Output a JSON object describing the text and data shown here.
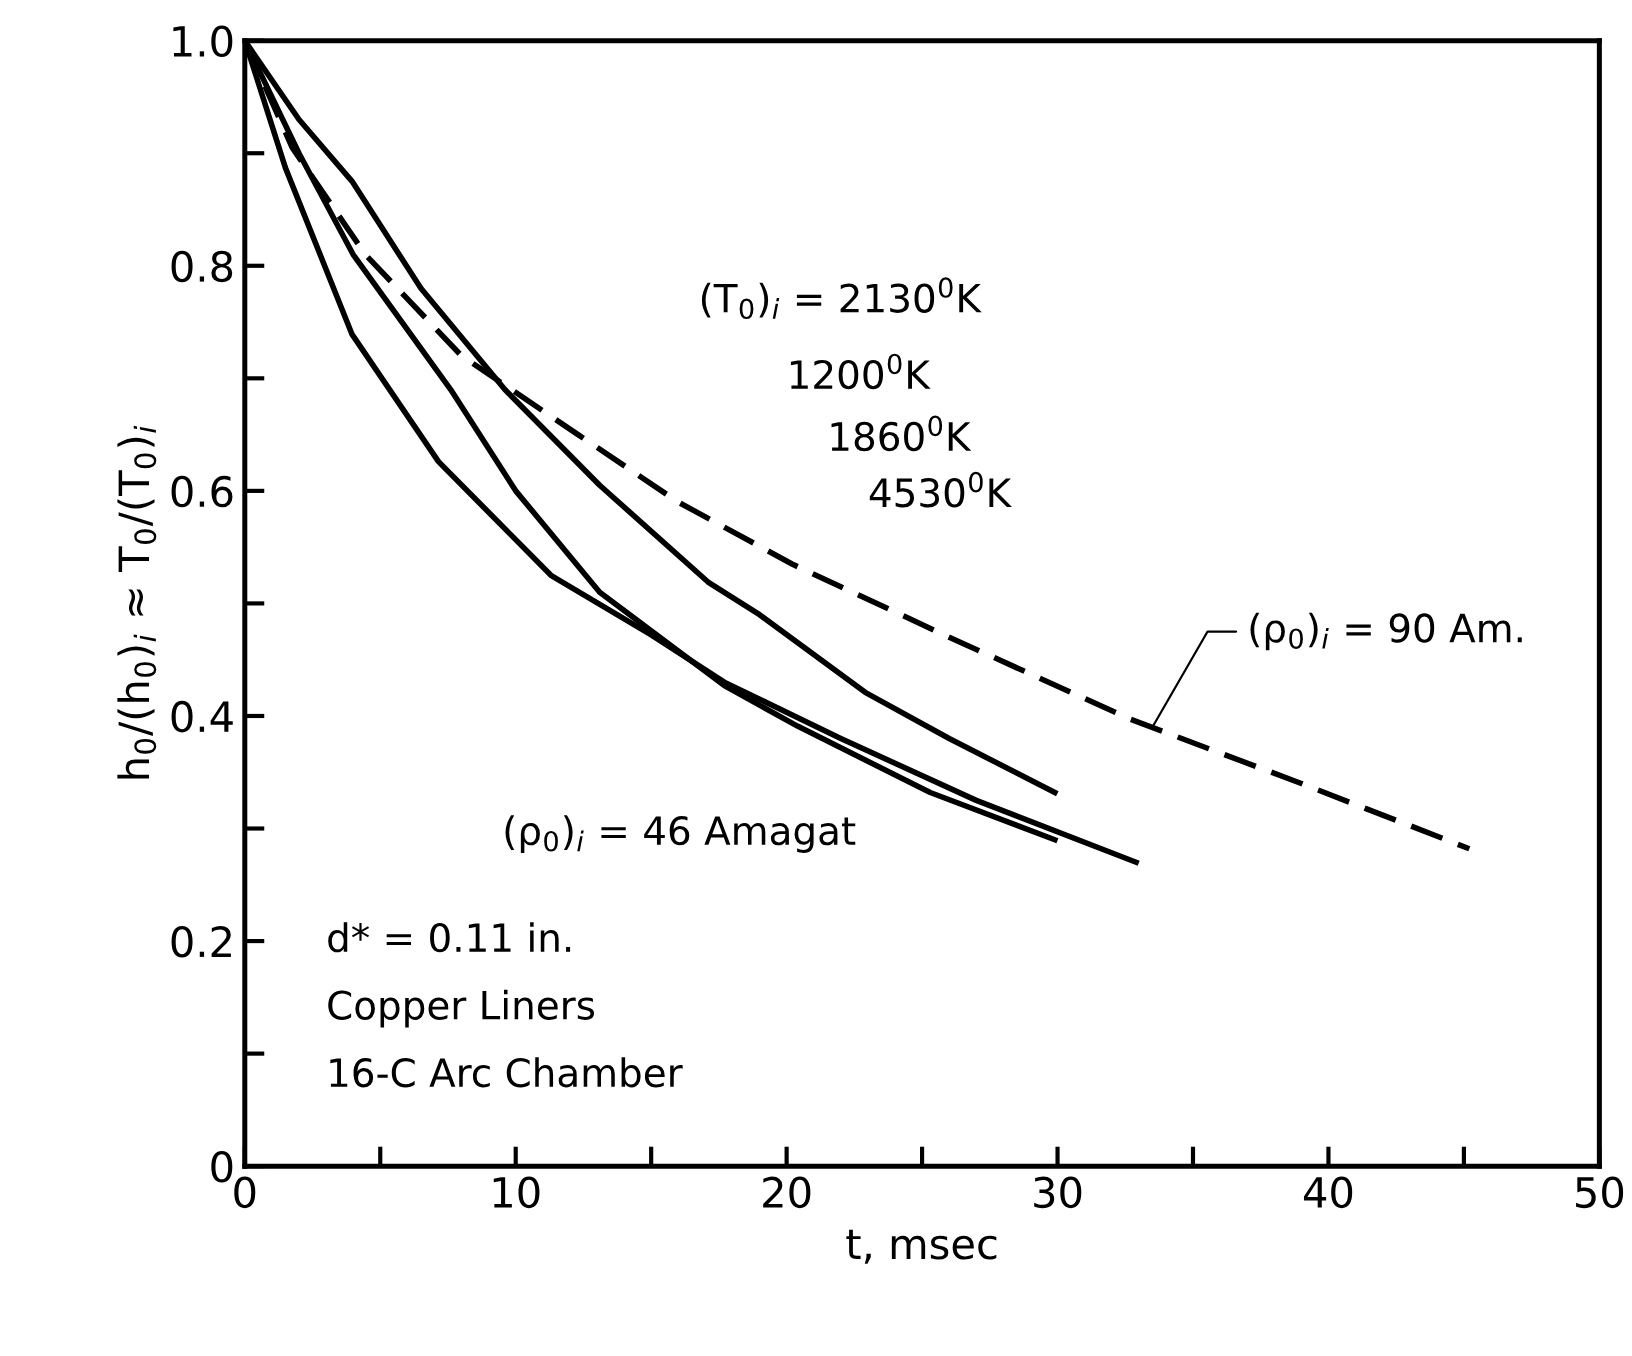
{
  "chart_data": {
    "type": "line",
    "xlabel": "t, msec",
    "ylabel": "h$_{0}$/(h$_{0}$)$_{i}$ ≈ T$_{0}$/(T$_{0}$)$_{i}$",
    "xlim": [
      0,
      50
    ],
    "ylim": [
      0,
      1.0
    ],
    "xticks": [
      0,
      {
        "value": 5,
        "label": null
      },
      10,
      {
        "value": 15,
        "label": null
      },
      20,
      {
        "value": 25,
        "label": null
      },
      30,
      {
        "value": 35,
        "label": null
      },
      40,
      {
        "value": 45,
        "label": null
      },
      50
    ],
    "yticks": [
      0,
      {
        "value": 0.1,
        "label": null
      },
      0.2,
      {
        "value": 0.3,
        "label": null
      },
      0.4,
      {
        "value": 0.5,
        "label": null
      },
      0.6,
      {
        "value": 0.7,
        "label": null
      },
      0.8,
      {
        "value": 0.9,
        "label": null
      },
      {
        "value": 1.0,
        "label": "1.0"
      }
    ],
    "grid": false,
    "marker": "none",
    "series": [
      {
        "color": "#000000",
        "line_style": "dashed",
        "x": [
          0,
          1.75,
          4.45,
          8,
          12.3,
          16,
          20.2,
          26,
          32.7,
          39,
          45.2
        ],
        "values": [
          1.0,
          0.905,
          0.81,
          0.72,
          0.65,
          0.59,
          0.535,
          0.47,
          0.397,
          0.34,
          0.282
        ]
      },
      {
        "color": "#000000",
        "line_style": "solid",
        "x": [
          0,
          2,
          3.96,
          6.5,
          9.6,
          13.1,
          17.1,
          19,
          22.9,
          26,
          29.9
        ],
        "values": [
          1.0,
          0.93,
          0.875,
          0.78,
          0.69,
          0.605,
          0.519,
          0.49,
          0.421,
          0.38,
          0.332
        ]
      },
      {
        "color": "#000000",
        "line_style": "solid",
        "x": [
          0,
          2,
          4,
          7.6,
          10,
          13.1,
          17.7,
          20.4,
          25.3,
          29.9
        ],
        "values": [
          1.0,
          0.9,
          0.81,
          0.69,
          0.6,
          0.51,
          0.427,
          0.391,
          0.332,
          0.29
        ]
      },
      {
        "color": "#000000",
        "line_style": "solid",
        "x": [
          0,
          1.5,
          3.96,
          7.15,
          11.3,
          15,
          17.7,
          22,
          27,
          32.9
        ],
        "values": [
          1.0,
          0.887,
          0.739,
          0.626,
          0.525,
          0.472,
          0.43,
          0.38,
          0.325,
          0.27
        ]
      }
    ],
    "annotations": [
      "(T$_{0}$)$_{i}$ = 2130$^{0}$K",
      "1200$^{0}$K",
      "1860$^{0}$K",
      "4530$^{0}$K",
      {
        "text": "(ρ$_{0}$)$_{i}$ = 90 Am.",
        "x": 33.5,
        "y": 0.39
      },
      "(ρ$_{0}$)$_{i}$ = 46 Amagat",
      "d* = 0.11 in.",
      "Copper Liners",
      "16-C Arc Chamber"
    ]
  }
}
